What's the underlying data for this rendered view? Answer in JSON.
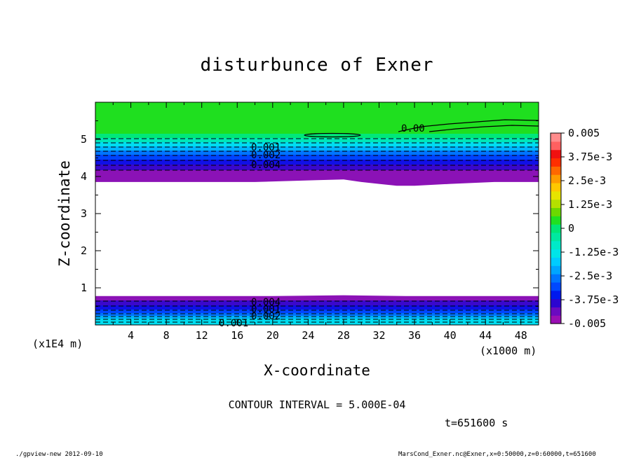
{
  "chart_data": {
    "type": "contour",
    "title": "disturbunce of Exner",
    "xlabel": "X-coordinate",
    "ylabel": "Z-coordinate",
    "x_unit": "(x1000 m)",
    "y_unit": "(x1E4 m)",
    "xlim": [
      0,
      50
    ],
    "ylim": [
      0,
      6
    ],
    "x_ticks": [
      4,
      8,
      12,
      16,
      20,
      24,
      28,
      32,
      36,
      40,
      44,
      48
    ],
    "y_ticks": [
      1,
      2,
      3,
      4,
      5
    ],
    "contour_interval_text": "CONTOUR INTERVAL = 5.000E-04",
    "time_text": "t=651600 s",
    "contour_labels": [
      "0.00",
      "0.001",
      "0.002",
      "0.004",
      "0.001",
      "0.002",
      "0.004",
      "0.001"
    ],
    "colorbar": {
      "labels": [
        "0.005",
        "3.75e-3",
        "2.5e-3",
        "1.25e-3",
        "0",
        "-1.25e-3",
        "-2.5e-3",
        "-3.75e-3",
        "-0.005"
      ],
      "min": -0.005,
      "max": 0.005,
      "colors": [
        "#9a0fb4",
        "#6a0ac0",
        "#2c05d0",
        "#0019ee",
        "#0048ff",
        "#0075ff",
        "#00a6ff",
        "#00ccff",
        "#00e5e8",
        "#00eac8",
        "#00e8a0",
        "#00e676",
        "#20e020",
        "#6cd800",
        "#b4e000",
        "#e6e400",
        "#ffc800",
        "#ff9c00",
        "#ff6800",
        "#ff2e00",
        "#f01010",
        "#ff6060",
        "#ff8c8c"
      ]
    },
    "upper_boundary_top": [
      [
        0,
        3.85
      ],
      [
        10,
        3.85
      ],
      [
        18,
        3.85
      ],
      [
        25,
        3.9
      ],
      [
        28,
        3.92
      ],
      [
        30,
        3.85
      ],
      [
        32,
        3.8
      ],
      [
        34,
        3.75
      ],
      [
        36,
        3.75
      ],
      [
        40,
        3.8
      ],
      [
        45,
        3.85
      ],
      [
        50,
        3.85
      ]
    ],
    "lower_boundary_bottom": [
      [
        0,
        0.78
      ],
      [
        10,
        0.78
      ],
      [
        20,
        0.78
      ],
      [
        28,
        0.8
      ],
      [
        35,
        0.78
      ],
      [
        40,
        0.78
      ],
      [
        45,
        0.78
      ],
      [
        50,
        0.78
      ]
    ]
  },
  "footer": {
    "left": "./gpview-new  2012-09-10",
    "right": "MarsCond_Exner.nc@Exner,x=0:50000,z=0:60000,t=651600"
  }
}
